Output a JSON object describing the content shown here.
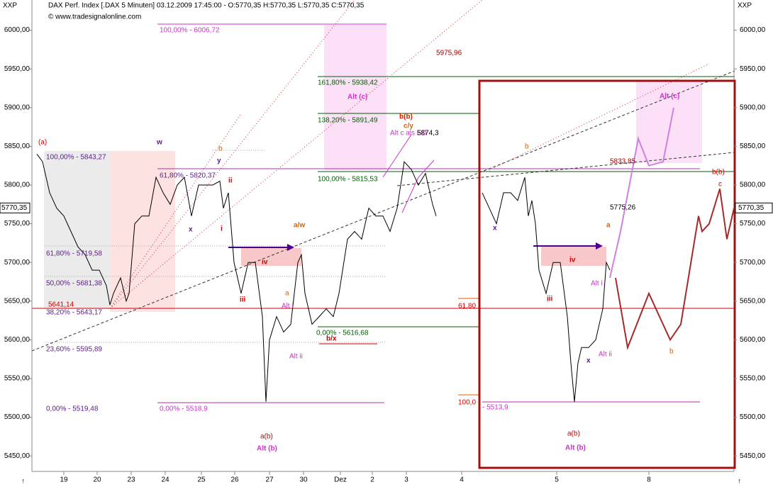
{
  "chart_data": {
    "type": "line",
    "title": "DAX Perf. Index [.DAX 5 Minuten] 03.12.2009 17:45:00 - O:5770,35 H:5770,35 L:5770,35 C:5770,35",
    "subtitle": "© www.tradesignalonline.com",
    "axis_name": "XXP",
    "xlim": [
      0,
      99
    ],
    "ylim": [
      5430,
      6039
    ],
    "xticks": [
      {
        "value": 4.5,
        "label": "19"
      },
      {
        "value": 9.2,
        "label": "20"
      },
      {
        "value": 14,
        "label": "23"
      },
      {
        "value": 18.8,
        "label": "24"
      },
      {
        "value": 23.9,
        "label": "25"
      },
      {
        "value": 28.6,
        "label": "26"
      },
      {
        "value": 33.5,
        "label": "27"
      },
      {
        "value": 38.3,
        "label": "30"
      },
      {
        "value": 43.5,
        "label": "Dez"
      },
      {
        "value": 48,
        "label": "2"
      },
      {
        "value": 52.8,
        "label": "3"
      },
      {
        "value": 60.6,
        "label": "4"
      },
      {
        "value": 74,
        "label": "5"
      },
      {
        "value": 87,
        "label": "8"
      }
    ],
    "yticks": [
      {
        "value": 5450,
        "label": "5450,00"
      },
      {
        "value": 5500,
        "label": "5500,00"
      },
      {
        "value": 5550,
        "label": "5550,00"
      },
      {
        "value": 5600,
        "label": "5600,00"
      },
      {
        "value": 5650,
        "label": "5650,00"
      },
      {
        "value": 5700,
        "label": "5700,00"
      },
      {
        "value": 5750,
        "label": "5750,00"
      },
      {
        "value": 5800,
        "label": "5800,00"
      },
      {
        "value": 5850,
        "label": "5850,00"
      },
      {
        "value": 5900,
        "label": "5900,00"
      },
      {
        "value": 5950,
        "label": "5950,00"
      },
      {
        "value": 6000,
        "label": "6000,00"
      }
    ],
    "last_price": {
      "value": 5770.35,
      "label": "5770,35"
    },
    "series": [
      {
        "color": "#000000",
        "x": [
          0.7,
          1.5,
          2.5,
          3.5,
          4.5,
          5.5,
          6.5,
          7.5,
          8.5,
          9.5,
          10.5,
          11,
          11.5,
          12.5,
          13.3,
          13.7,
          14.5,
          15.5,
          16.5,
          17.5,
          18.5,
          19.5,
          20.5,
          21.5,
          22.5,
          23.5,
          24.5,
          25.5,
          26.5,
          27,
          27.7,
          28.5,
          29.5,
          30.5,
          31.5,
          32.5,
          33,
          33.5,
          34.5,
          35.5,
          36.5,
          37.5,
          38,
          38.5,
          39.5,
          40.5,
          41.5,
          42.5,
          43.3,
          44.5,
          45.5,
          46.5,
          47.5,
          48.5,
          49.5,
          50.5,
          51.5,
          52.5,
          53.5,
          54.5,
          55.5,
          56.5,
          57
        ],
        "values": [
          5840,
          5830,
          5790,
          5770,
          5760,
          5740,
          5720,
          5710,
          5690,
          5690,
          5670,
          5645,
          5660,
          5680,
          5650,
          5660,
          5750,
          5760,
          5760,
          5810,
          5790,
          5775,
          5800,
          5810,
          5760,
          5800,
          5800,
          5800,
          5805,
          5770,
          5790,
          5700,
          5660,
          5700,
          5700,
          5630,
          5520,
          5600,
          5630,
          5610,
          5620,
          5700,
          5710,
          5660,
          5620,
          5630,
          5640,
          5630,
          5660,
          5730,
          5740,
          5730,
          5770,
          5760,
          5760,
          5740,
          5770,
          5830,
          5820,
          5800,
          5815,
          5775,
          5760
        ]
      },
      {
        "color": "#000000",
        "x": [
          63.5,
          64.5,
          65.5,
          66.5,
          67.5,
          68.5,
          69.5,
          70,
          70.5,
          71,
          71.5,
          72.5,
          73.5,
          74.5,
          75.5,
          76,
          76.5,
          77,
          77.5,
          78.5,
          79.5,
          80,
          80.5,
          81,
          81.5
        ],
        "values": [
          5790,
          5770,
          5750,
          5790,
          5790,
          5780,
          5810,
          5760,
          5780,
          5750,
          5690,
          5660,
          5700,
          5700,
          5630,
          5570,
          5520,
          5570,
          5590,
          5590,
          5600,
          5620,
          5640,
          5700,
          5690
        ]
      },
      {
        "color": "#a52a2a",
        "x": [
          82.3,
          84,
          87,
          90,
          91.5,
          94,
          94.5,
          95.5,
          97,
          98,
          99
        ],
        "values": [
          5680,
          5590,
          5660,
          5600,
          5620,
          5760,
          5740,
          5750,
          5795,
          5730,
          5770
        ]
      },
      {
        "color": "#d080e0",
        "x": [
          81.5,
          83,
          85.5,
          87,
          89,
          90.5
        ],
        "values": [
          5680,
          5740,
          5860,
          5825,
          5830,
          5900
        ]
      }
    ],
    "annotations": [
      {
        "text": "100,00% - 6006,72",
        "color": "#cc33cc"
      },
      {
        "text": "5975,96",
        "color": "#a00000"
      },
      {
        "text": "161,80% - 5938,42",
        "color": "#006000"
      },
      {
        "text": "Alt (c)",
        "color": "#cc33cc"
      },
      {
        "text": "138,20% - 5891,49",
        "color": "#006000"
      },
      {
        "text": "b(b)",
        "color": "#cc2200"
      },
      {
        "text": "c/y",
        "color": "#e06000"
      },
      {
        "text": "Alt c als ED",
        "color": "#cc33cc"
      },
      {
        "text": "5874,3",
        "color": "#000000"
      },
      {
        "text": "(a)",
        "color": "#cc0000"
      },
      {
        "text": "100,00% - 5843,27",
        "color": "#5a1a8a"
      },
      {
        "text": "61,80% - 5820,37",
        "color": "#5a1a8a"
      },
      {
        "text": "100,00% - 5815,53",
        "color": "#006000"
      },
      {
        "text": "61,80% - 5719,58",
        "color": "#5a1a8a"
      },
      {
        "text": "50,00% - 5681,38",
        "color": "#5a1a8a"
      },
      {
        "text": "5641,14",
        "color": "#cc0000"
      },
      {
        "text": "38,20% - 5643,17",
        "color": "#5a1a8a"
      },
      {
        "text": "0,00% - 5616,68",
        "color": "#006000"
      },
      {
        "text": "23,60% - 5595,89",
        "color": "#5a1a8a"
      },
      {
        "text": "0,00% - 5519,48",
        "color": "#5a1a8a"
      },
      {
        "text": "0,00% - 5518,9",
        "color": "#cc33cc"
      },
      {
        "text": "a(b)",
        "color": "#cc0000"
      },
      {
        "text": "Alt (b)",
        "color": "#cc33cc"
      },
      {
        "text": "a/w",
        "color": "#e06000"
      },
      {
        "text": "b/x",
        "color": "#cc0000"
      },
      {
        "text": "iv",
        "color": "#cc0000"
      },
      {
        "text": "iii",
        "color": "#cc0000"
      },
      {
        "text": "Alt i",
        "color": "#cc33cc"
      },
      {
        "text": "Alt ii",
        "color": "#cc33cc"
      },
      {
        "text": "w",
        "color": "#5a1a8a"
      },
      {
        "text": "y",
        "color": "#5a1a8a"
      },
      {
        "text": "x",
        "color": "#5a1a8a"
      },
      {
        "text": "b",
        "color": "#e06000"
      },
      {
        "text": "ii",
        "color": "#cc0000"
      },
      {
        "text": "i",
        "color": "#cc0000"
      },
      {
        "text": "a",
        "color": "#e06000"
      },
      {
        "text": "Alt (c)",
        "color": "#cc33cc"
      },
      {
        "text": "5833,85",
        "color": "#a00000"
      },
      {
        "text": "b(b)",
        "color": "#cc0000"
      },
      {
        "text": "5775,26",
        "color": "#000000"
      },
      {
        "text": "61,80",
        "color": "#cc0000"
      },
      {
        "text": "100,0",
        "color": "#cc0000"
      },
      {
        "text": "- 5513,9",
        "color": "#cc33cc"
      },
      {
        "text": "a(b)",
        "color": "#cc0000"
      },
      {
        "text": "Alt (b)",
        "color": "#cc33cc"
      },
      {
        "text": "iv",
        "color": "#cc0000"
      },
      {
        "text": "iii",
        "color": "#cc0000"
      },
      {
        "text": "Alt i",
        "color": "#cc33cc"
      },
      {
        "text": "Alt ii",
        "color": "#cc33cc"
      },
      {
        "text": "b",
        "color": "#e06000"
      },
      {
        "text": "b",
        "color": "#e06000"
      },
      {
        "text": "x",
        "color": "#5a1a8a"
      },
      {
        "text": "x",
        "color": "#5a1a8a"
      },
      {
        "text": "a",
        "color": "#e06000"
      },
      {
        "text": "c",
        "color": "#cc0000"
      }
    ]
  }
}
